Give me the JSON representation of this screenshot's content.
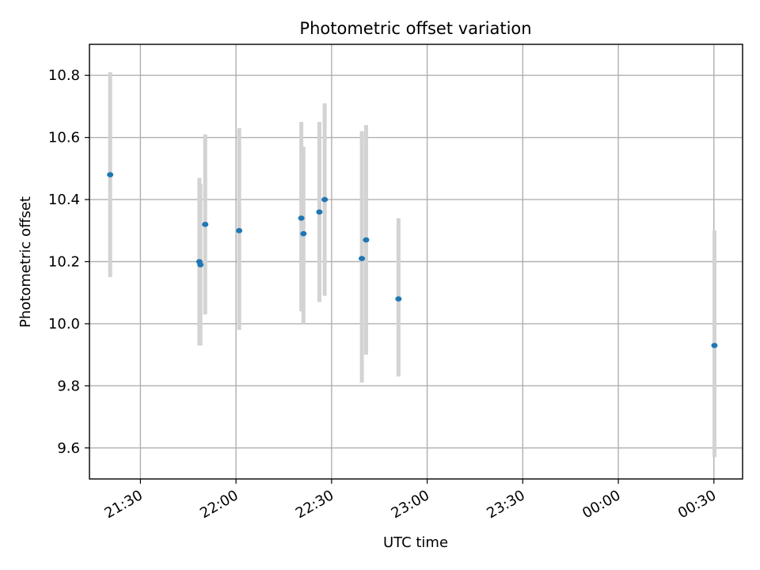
{
  "chart_data": {
    "type": "scatter",
    "title": "Photometric offset variation",
    "xlabel": "UTC time",
    "ylabel": "Photometric offset",
    "x_axis": {
      "kind": "time",
      "range": [
        "21:14",
        "00:39"
      ],
      "ticks": [
        {
          "value": "21:30",
          "label": "21:30"
        },
        {
          "value": "22:00",
          "label": "22:00"
        },
        {
          "value": "22:30",
          "label": "22:30"
        },
        {
          "value": "23:00",
          "label": "23:00"
        },
        {
          "value": "23:30",
          "label": "23:30"
        },
        {
          "value": "00:00",
          "label": "00:00"
        },
        {
          "value": "00:30",
          "label": "00:30"
        }
      ],
      "tick_label_rotation": 30
    },
    "y_axis": {
      "range": [
        9.5,
        10.9
      ],
      "ticks": [
        {
          "value": 9.6,
          "label": "9.6"
        },
        {
          "value": 9.8,
          "label": "9.8"
        },
        {
          "value": 10.0,
          "label": "10.0"
        },
        {
          "value": 10.2,
          "label": "10.2"
        },
        {
          "value": 10.4,
          "label": "10.4"
        },
        {
          "value": 10.6,
          "label": "10.6"
        },
        {
          "value": 10.8,
          "label": "10.8"
        }
      ]
    },
    "grid": true,
    "points": [
      {
        "time": "21:20:30",
        "y": 10.48,
        "err_low": 10.15,
        "err_high": 10.81
      },
      {
        "time": "21:48:30",
        "y": 10.2,
        "err_low": 9.93,
        "err_high": 10.47
      },
      {
        "time": "21:48:50",
        "y": 10.19,
        "err_low": 9.93,
        "err_high": 10.45
      },
      {
        "time": "21:50:20",
        "y": 10.32,
        "err_low": 10.03,
        "err_high": 10.61
      },
      {
        "time": "22:01:00",
        "y": 10.3,
        "err_low": 9.98,
        "err_high": 10.63
      },
      {
        "time": "22:20:30",
        "y": 10.34,
        "err_low": 10.04,
        "err_high": 10.65
      },
      {
        "time": "22:21:10",
        "y": 10.29,
        "err_low": 10.0,
        "err_high": 10.57
      },
      {
        "time": "22:26:10",
        "y": 10.36,
        "err_low": 10.07,
        "err_high": 10.65
      },
      {
        "time": "22:27:50",
        "y": 10.4,
        "err_low": 10.09,
        "err_high": 10.71
      },
      {
        "time": "22:39:30",
        "y": 10.21,
        "err_low": 9.81,
        "err_high": 10.62
      },
      {
        "time": "22:40:50",
        "y": 10.27,
        "err_low": 9.9,
        "err_high": 10.64
      },
      {
        "time": "22:51:00",
        "y": 10.08,
        "err_low": 9.83,
        "err_high": 10.34
      },
      {
        "time": "00:30:10",
        "y": 9.93,
        "err_low": 9.57,
        "err_high": 10.3
      }
    ],
    "colors": {
      "marker": "#1f77b4",
      "errorbar": "#d3d3d3",
      "grid": "#b0b0b0"
    }
  }
}
